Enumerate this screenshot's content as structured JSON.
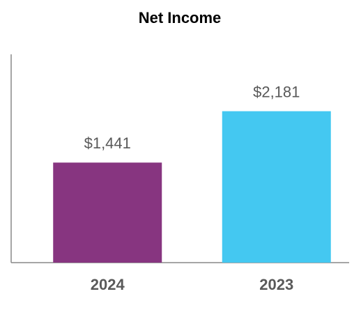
{
  "chart_data": {
    "type": "bar",
    "title": "Net Income",
    "categories": [
      "2024",
      "2023"
    ],
    "values": [
      1441,
      2181
    ],
    "value_labels": [
      "$1,441",
      "$2,181"
    ],
    "colors": [
      "#873580",
      "#44c8f1"
    ],
    "ylim": [
      0,
      3000
    ]
  }
}
